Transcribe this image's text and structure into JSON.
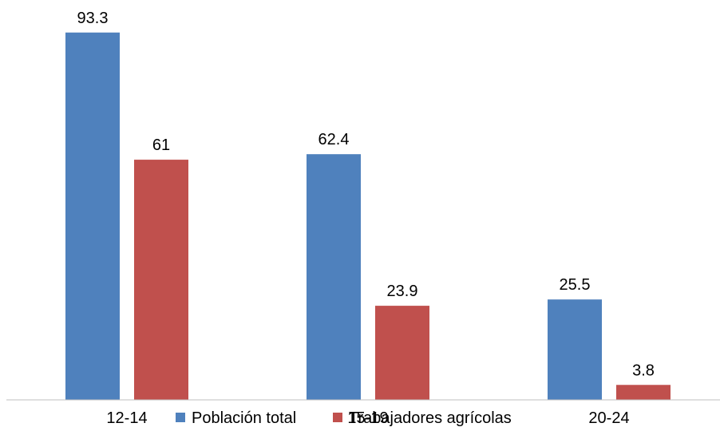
{
  "chart_data": {
    "type": "bar",
    "categories": [
      "12-14",
      "15-19",
      "20-24"
    ],
    "series": [
      {
        "name": "Población total",
        "values": [
          93.3,
          62.4,
          25.5
        ],
        "color": "#4F81BD"
      },
      {
        "name": "Trabajadores agrícolas",
        "values": [
          61,
          23.9,
          3.8
        ],
        "color": "#C0504D"
      }
    ],
    "value_labels": [
      [
        "93.3",
        "62.4",
        "25.5"
      ],
      [
        "61",
        "23.9",
        "3.8"
      ]
    ],
    "ylim": [
      0,
      100
    ],
    "grid": false,
    "legend_position": "bottom",
    "axis_color": "#BFBFBF"
  }
}
